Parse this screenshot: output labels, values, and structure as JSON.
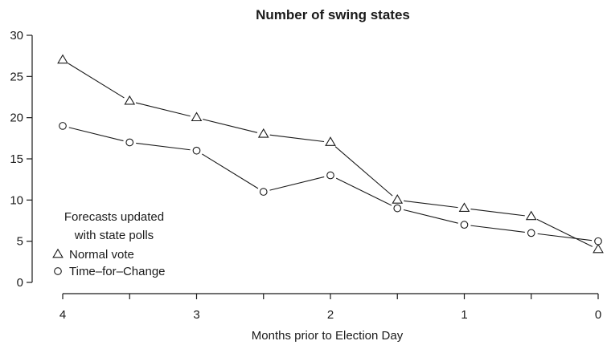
{
  "chart_data": {
    "type": "line",
    "title": "Number of swing states",
    "xlabel": "Months prior to Election Day",
    "ylabel": "",
    "xlim": [
      4,
      0
    ],
    "ylim": [
      0,
      30
    ],
    "x_reversed": true,
    "x": [
      4,
      3.5,
      3,
      2.5,
      2,
      1.5,
      1,
      0.5,
      0
    ],
    "x_ticks": [
      4,
      3,
      2,
      1,
      0
    ],
    "y_ticks": [
      0,
      5,
      10,
      15,
      20,
      25,
      30
    ],
    "grid": false,
    "legend": {
      "title_lines": [
        "Forecasts updated",
        "with state polls"
      ],
      "placement": "bottom-left"
    },
    "series": [
      {
        "name": "Normal vote",
        "marker": "triangle",
        "values": [
          27,
          22,
          20,
          18,
          17,
          10,
          9,
          8,
          4
        ]
      },
      {
        "name": "Time–for–Change",
        "marker": "circle",
        "values": [
          19,
          17,
          16,
          11,
          13,
          9,
          7,
          6,
          5
        ]
      }
    ],
    "colors": {
      "ink": "#1a1a1a",
      "marker_fill": "#ffffff"
    }
  }
}
